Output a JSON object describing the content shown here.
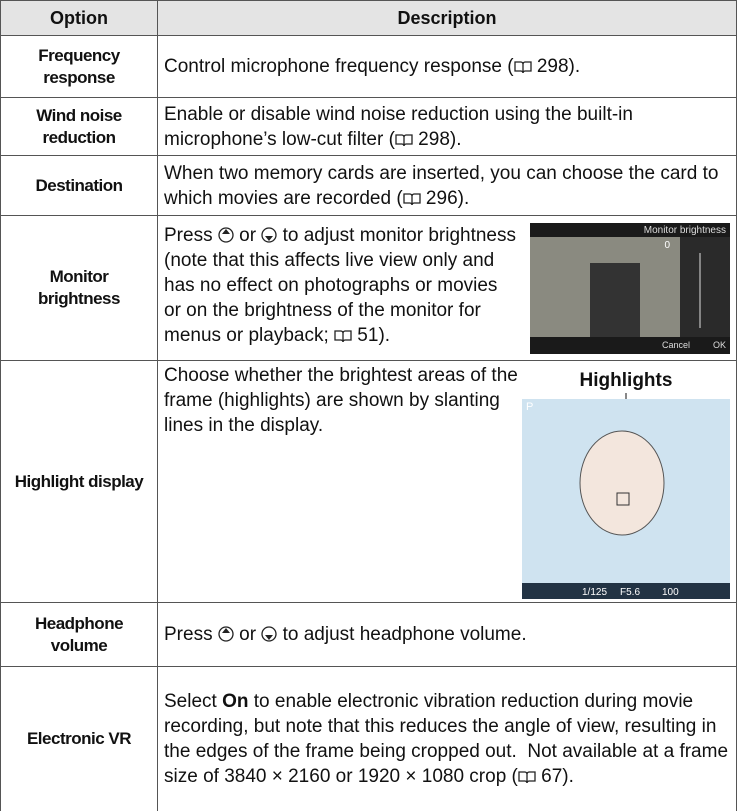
{
  "header": {
    "option": "Option",
    "description": "Description"
  },
  "rows": [
    {
      "option": "Frequency response",
      "description": [
        "Control microphone frequency response (",
        " 298)."
      ]
    },
    {
      "option": "Wind noise reduction",
      "description": [
        "Enable or disable wind noise reduction using the built-in microphone’s low-cut filter (",
        " 298)."
      ]
    },
    {
      "option": "Destination",
      "description": [
        "When two memory cards are inserted, you can choose the card to which movies are recorded (",
        " 296)."
      ]
    },
    {
      "option": "Monitor brightness",
      "description": [
        "Press ",
        " or ",
        " to adjust monitor brightness (note that this affects live view only and has no effect on photographs or movies or on the brightness of the monitor for menus or playback; ",
        " 51)."
      ],
      "image": {
        "title": "Monitor brightness",
        "value": "0",
        "cancel": "Cancel",
        "ok": "OK"
      }
    },
    {
      "option": "Highlight display",
      "description": [
        "Choose whether the brightest areas of the frame (highlights) are shown by slanting lines in the display."
      ],
      "image": {
        "caption": "Highlights",
        "mode": "P",
        "shutter": "1/125",
        "aperture": "F5.6",
        "iso": "100"
      }
    },
    {
      "option": "Headphone volume",
      "description": [
        "Press ",
        " or ",
        " to adjust headphone volume."
      ]
    },
    {
      "option": "Electronic VR",
      "description": [
        "Select ",
        "On",
        " to enable electronic vibration reduction during movie recording, but note that this reduces the angle of view, resulting in the edges of the frame being cropped out.  Not available at a frame size of 3840 × 2160 or 1920 × 1080 crop (",
        " 67)."
      ]
    }
  ]
}
